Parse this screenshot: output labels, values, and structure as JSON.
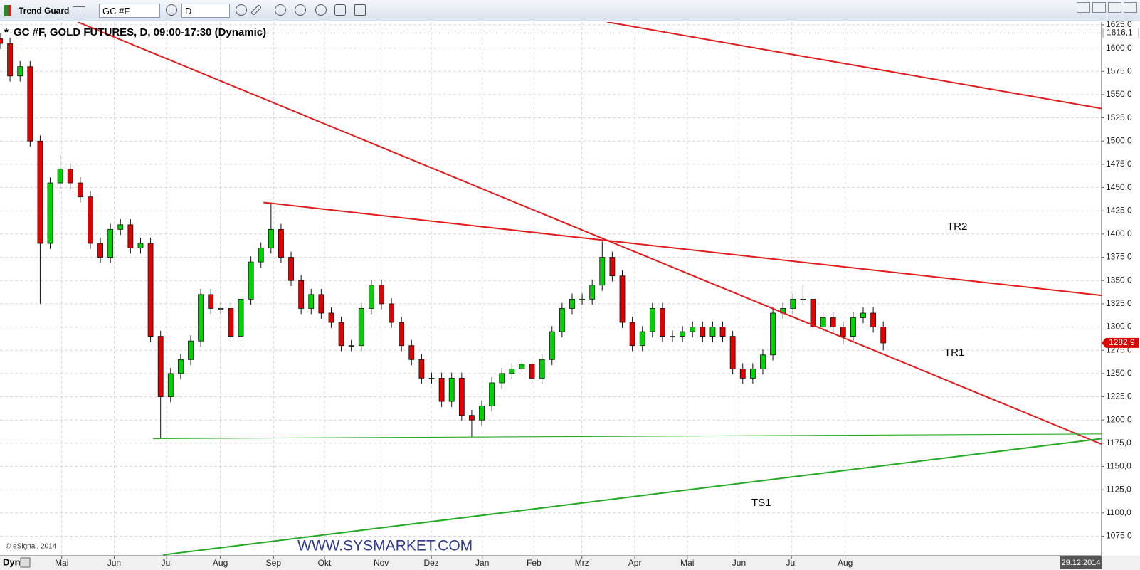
{
  "toolbar": {
    "app": "Trend Guard",
    "symbol": "GC #F",
    "interval": "D"
  },
  "chart_data": {
    "type": "candlestick",
    "title_marker": "*",
    "title": "GC #F, GOLD FUTURES, D, 09:00-17:30 (Dynamic)",
    "x": [
      0,
      4,
      8,
      12,
      16,
      20,
      24,
      28,
      32,
      36,
      40,
      44,
      48,
      52,
      56,
      60,
      64,
      68,
      72,
      76,
      80,
      84,
      88,
      92,
      96,
      100,
      104,
      108,
      112,
      116,
      120,
      124,
      128,
      132,
      136,
      140,
      144,
      148,
      152,
      156,
      160,
      164,
      168,
      172,
      176,
      180,
      184,
      188,
      192,
      196,
      200,
      204,
      208,
      212,
      216,
      220,
      224,
      228,
      232,
      236,
      240,
      244,
      248,
      252,
      256,
      260,
      264,
      268,
      272,
      276,
      280,
      284,
      288,
      292,
      296,
      300,
      304,
      308,
      312,
      316,
      320,
      324,
      328,
      332,
      336,
      340,
      344,
      348,
      352
    ],
    "open": [
      1610,
      1605,
      1570,
      1580,
      1500,
      1390,
      1455,
      1470,
      1455,
      1440,
      1390,
      1375,
      1405,
      1410,
      1385,
      1390,
      1290,
      1225,
      1250,
      1265,
      1285,
      1335,
      1320,
      1320,
      1290,
      1330,
      1370,
      1385,
      1405,
      1375,
      1350,
      1320,
      1335,
      1315,
      1305,
      1280,
      1280,
      1320,
      1345,
      1325,
      1305,
      1280,
      1265,
      1245,
      1245,
      1220,
      1245,
      1205,
      1200,
      1215,
      1240,
      1250,
      1255,
      1260,
      1245,
      1265,
      1295,
      1320,
      1330,
      1330,
      1345,
      1375,
      1355,
      1305,
      1280,
      1295,
      1320,
      1290,
      1290,
      1295,
      1300,
      1290,
      1300,
      1290,
      1255,
      1245,
      1255,
      1270,
      1315,
      1320,
      1330,
      1330,
      1300,
      1310,
      1300,
      1290,
      1310,
      1315,
      1300
    ],
    "high": [
      1616,
      1611,
      1586,
      1586,
      1506,
      1461,
      1485,
      1476,
      1461,
      1446,
      1396,
      1411,
      1416,
      1416,
      1396,
      1396,
      1296,
      1256,
      1271,
      1291,
      1341,
      1341,
      1326,
      1326,
      1336,
      1376,
      1391,
      1434,
      1411,
      1381,
      1356,
      1341,
      1341,
      1321,
      1311,
      1286,
      1326,
      1351,
      1351,
      1331,
      1311,
      1286,
      1271,
      1251,
      1251,
      1251,
      1251,
      1211,
      1221,
      1246,
      1256,
      1261,
      1266,
      1266,
      1271,
      1301,
      1326,
      1336,
      1336,
      1351,
      1392,
      1381,
      1361,
      1311,
      1301,
      1326,
      1326,
      1296,
      1301,
      1306,
      1306,
      1306,
      1306,
      1296,
      1261,
      1261,
      1276,
      1321,
      1326,
      1336,
      1345,
      1336,
      1316,
      1316,
      1306,
      1316,
      1321,
      1321,
      1306
    ],
    "low": [
      1599,
      1564,
      1564,
      1494,
      1325,
      1384,
      1449,
      1449,
      1434,
      1384,
      1369,
      1369,
      1399,
      1379,
      1379,
      1284,
      1180,
      1219,
      1244,
      1259,
      1279,
      1314,
      1314,
      1284,
      1284,
      1324,
      1364,
      1379,
      1369,
      1344,
      1314,
      1314,
      1309,
      1299,
      1274,
      1274,
      1274,
      1314,
      1319,
      1299,
      1274,
      1259,
      1239,
      1239,
      1214,
      1214,
      1199,
      1182,
      1194,
      1209,
      1234,
      1244,
      1249,
      1239,
      1239,
      1259,
      1289,
      1314,
      1324,
      1324,
      1339,
      1349,
      1299,
      1274,
      1274,
      1289,
      1284,
      1284,
      1284,
      1289,
      1284,
      1284,
      1284,
      1249,
      1239,
      1239,
      1249,
      1264,
      1309,
      1314,
      1324,
      1294,
      1294,
      1294,
      1281,
      1284,
      1304,
      1294,
      1275
    ],
    "close": [
      1605,
      1570,
      1580,
      1500,
      1390,
      1455,
      1470,
      1455,
      1440,
      1390,
      1375,
      1405,
      1410,
      1385,
      1390,
      1290,
      1225,
      1250,
      1265,
      1285,
      1335,
      1320,
      1320,
      1290,
      1330,
      1370,
      1385,
      1405,
      1375,
      1350,
      1320,
      1335,
      1315,
      1305,
      1280,
      1280,
      1320,
      1345,
      1325,
      1305,
      1280,
      1265,
      1245,
      1245,
      1220,
      1245,
      1205,
      1200,
      1215,
      1240,
      1250,
      1255,
      1260,
      1245,
      1265,
      1295,
      1320,
      1330,
      1330,
      1345,
      1375,
      1355,
      1305,
      1280,
      1295,
      1320,
      1290,
      1290,
      1295,
      1300,
      1290,
      1300,
      1290,
      1255,
      1245,
      1255,
      1270,
      1315,
      1320,
      1330,
      1330,
      1300,
      1310,
      1300,
      1290,
      1310,
      1315,
      1300,
      1282.9
    ],
    "up_color": "#00d400",
    "down_color": "#e00000",
    "xlim": [
      0,
      439
    ],
    "ylim": [
      1054,
      1628
    ],
    "grid": true,
    "yticks": [
      {
        "value": 1625,
        "label": "1625,0"
      },
      {
        "value": 1600,
        "label": "1600,0"
      },
      {
        "value": 1575,
        "label": "1575,0"
      },
      {
        "value": 1550,
        "label": "1550,0"
      },
      {
        "value": 1525,
        "label": "1525,0"
      },
      {
        "value": 1500,
        "label": "1500,0"
      },
      {
        "value": 1475,
        "label": "1475,0"
      },
      {
        "value": 1450,
        "label": "1450,0"
      },
      {
        "value": 1425,
        "label": "1425,0"
      },
      {
        "value": 1400,
        "label": "1400,0"
      },
      {
        "value": 1375,
        "label": "1375,0"
      },
      {
        "value": 1350,
        "label": "1350,0"
      },
      {
        "value": 1325,
        "label": "1325,0"
      },
      {
        "value": 1300,
        "label": "1300,0"
      },
      {
        "value": 1275,
        "label": "1275,0"
      },
      {
        "value": 1250,
        "label": "1250,0"
      },
      {
        "value": 1225,
        "label": "1225,0"
      },
      {
        "value": 1200,
        "label": "1200,0"
      },
      {
        "value": 1175,
        "label": "1175,0"
      },
      {
        "value": 1150,
        "label": "1150,0"
      },
      {
        "value": 1125,
        "label": "1125,0"
      },
      {
        "value": 1100,
        "label": "1100,0"
      },
      {
        "value": 1075,
        "label": "1075,0"
      }
    ],
    "xticks": [
      {
        "value": 24.6,
        "label": "Mai"
      },
      {
        "value": 45.5,
        "label": "Jun"
      },
      {
        "value": 66.4,
        "label": "Jul"
      },
      {
        "value": 87.8,
        "label": "Aug"
      },
      {
        "value": 109,
        "label": "Sep"
      },
      {
        "value": 129.3,
        "label": "Okt"
      },
      {
        "value": 151.9,
        "label": "Nov"
      },
      {
        "value": 171.9,
        "label": "Dez"
      },
      {
        "value": 192.2,
        "label": "Jan"
      },
      {
        "value": 212.8,
        "label": "Feb"
      },
      {
        "value": 231.9,
        "label": "Mrz"
      },
      {
        "value": 253,
        "label": "Apr"
      },
      {
        "value": 273.9,
        "label": "Mai"
      },
      {
        "value": 294.5,
        "label": "Jun"
      },
      {
        "value": 315.4,
        "label": "Jul"
      },
      {
        "value": 336.8,
        "label": "Aug"
      }
    ],
    "lines": [
      {
        "color": "#e31b1b",
        "x": [
          31,
          439
        ],
        "y": [
          1628,
          1174
        ]
      },
      {
        "color": "#e31b1b",
        "x": [
          105,
          439
        ],
        "y": [
          1434,
          1334
        ]
      },
      {
        "color": "#e31b1b",
        "x": [
          242,
          439
        ],
        "y": [
          1628,
          1535
        ]
      },
      {
        "color": "#22aa22",
        "x": [
          61,
          439
        ],
        "y": [
          1180,
          1185
        ]
      },
      {
        "color": "#22aa22",
        "x": [
          65,
          439
        ],
        "y": [
          1055,
          1180
        ]
      }
    ],
    "annotations": [
      "TR2",
      "TR1",
      "TS1"
    ],
    "price_marker": {
      "value": 1282.9,
      "label": "1282,9"
    },
    "top_marker": {
      "value": 1616.1,
      "label": "1616,1"
    },
    "date_label": "29.12.2014",
    "footer": {
      "mode": "Dyn",
      "copyright": "© eSignal, 2014",
      "watermark": "WWW.SYSMARKET.COM"
    }
  }
}
